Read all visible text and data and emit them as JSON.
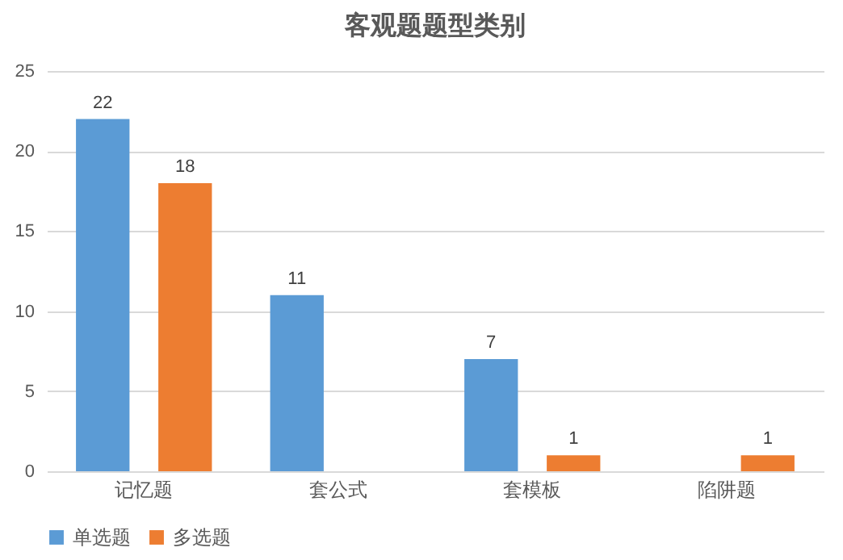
{
  "chart_data": {
    "type": "bar",
    "title": "客观题题型类别",
    "categories": [
      "记忆题",
      "套公式",
      "套模板",
      "陷阱题"
    ],
    "series": [
      {
        "name": "单选题",
        "color": "#5b9bd5",
        "values": [
          22,
          11,
          7,
          null
        ]
      },
      {
        "name": "多选题",
        "color": "#ed7d31",
        "values": [
          18,
          null,
          1,
          1
        ]
      }
    ],
    "ylim": [
      0,
      25
    ],
    "yticks": [
      0,
      5,
      10,
      15,
      20,
      25
    ],
    "grid": "y",
    "legend": "bottom",
    "data_labels": true
  }
}
